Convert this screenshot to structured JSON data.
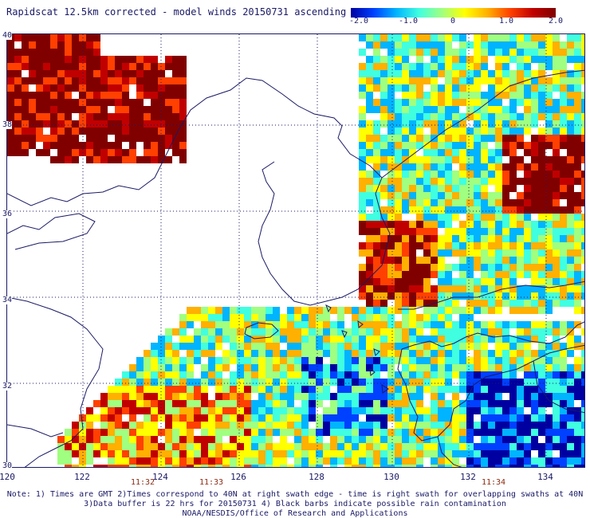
{
  "title": "Rapidscat 12.5km corrected - model winds 20150731 ascending",
  "colorbar": {
    "ticks": [
      "-2.0",
      "-1.0",
      "0",
      "1.0",
      "2.0"
    ],
    "colors": [
      "#0000a0",
      "#0040ff",
      "#00b4ff",
      "#40ffe0",
      "#a0ff80",
      "#ffff00",
      "#ffb000",
      "#ff4000",
      "#c00000",
      "#800000"
    ]
  },
  "map": {
    "lon_range": [
      120,
      135
    ],
    "lat_range": [
      30,
      40
    ],
    "x_ticks": [
      "120",
      "122",
      "124",
      "126",
      "128",
      "130",
      "132",
      "134"
    ],
    "y_ticks": [
      "40",
      "38",
      "36",
      "34",
      "32",
      "30"
    ],
    "grid": "dotted",
    "coastline_color": "#1a1a66"
  },
  "swath_times": [
    {
      "lon": 123.5,
      "label": "11:32"
    },
    {
      "lon": 125.5,
      "label": "11:33"
    },
    {
      "lon": 132.5,
      "label": "11:34"
    }
  ],
  "notes": {
    "line1": "Note: 1) Times are GMT 2)Times correspond to 40N at right swath edge - time is right swath for overlapping swaths at 40N",
    "line2": "3)Data buffer is 22 hrs for 20150731 4) Black barbs indicate possible rain contamination",
    "line3": "NOAA/NESDIS/Office of Research and Applications"
  }
}
